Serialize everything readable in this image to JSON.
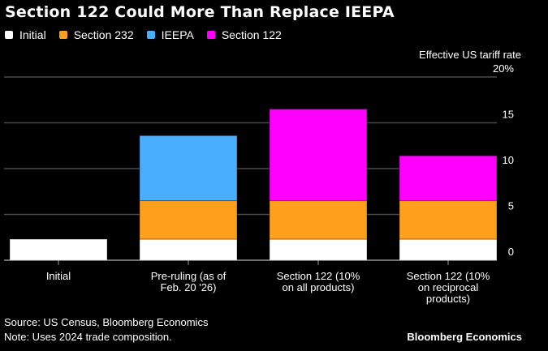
{
  "chart_data": {
    "type": "bar",
    "stacked": true,
    "title": "Section 122 Could More Than Replace IEEPA",
    "ylabel": "Effective US tariff rate",
    "ylim": [
      0,
      20
    ],
    "yticks": [
      "20%",
      "15",
      "10",
      "5",
      "0"
    ],
    "ytick_values": [
      20,
      15,
      10,
      5,
      0
    ],
    "grid": true,
    "legend_position": "top-left",
    "categories": [
      [
        "Initial"
      ],
      [
        "Pre-ruling (as of",
        "Feb. 20 '26)"
      ],
      [
        "Section 122 (10%",
        "on all products)"
      ],
      [
        "Section 122 (10%",
        "on reciprocal",
        "products)"
      ]
    ],
    "series": [
      {
        "name": "Initial",
        "color": "#ffffff",
        "values": [
          2.3,
          2.3,
          2.3,
          2.3
        ]
      },
      {
        "name": "Section 232",
        "color": "#ffa01c",
        "values": [
          0,
          4.2,
          4.2,
          4.2
        ]
      },
      {
        "name": "IEEPA",
        "color": "#4aaeff",
        "values": [
          0,
          7.1,
          0,
          0
        ]
      },
      {
        "name": "Section 122",
        "color": "#ff00ff",
        "values": [
          0,
          0,
          10.0,
          4.9
        ]
      }
    ]
  },
  "footer": {
    "source": "Source: US Census, Bloomberg Economics",
    "note": "Note: Uses 2024 trade composition.",
    "brand": "Bloomberg Economics"
  }
}
